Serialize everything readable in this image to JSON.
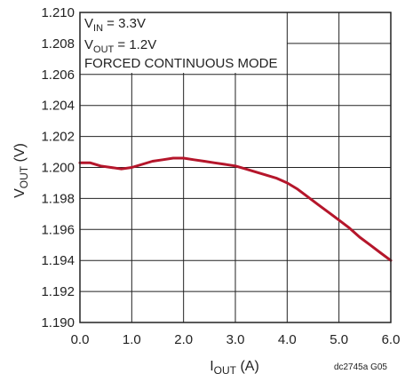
{
  "chart_data": {
    "type": "line",
    "annotations": {
      "vin": {
        "main": "V",
        "sub": "IN",
        "rest": " = 3.3V"
      },
      "vout": {
        "main": "V",
        "sub": "OUT",
        "rest": " = 1.2V"
      },
      "mode": "FORCED CONTINUOUS MODE"
    },
    "xlabel": {
      "main": "I",
      "sub": "OUT",
      "rest": " (A)"
    },
    "ylabel": {
      "main": "V",
      "sub": "OUT",
      "rest": " (V)"
    },
    "figure_code": "dc2745a G05",
    "xlim": [
      0,
      6
    ],
    "ylim": [
      1.19,
      1.21
    ],
    "x_ticks": [
      {
        "v": 0,
        "label": "0.0"
      },
      {
        "v": 1,
        "label": "1.0"
      },
      {
        "v": 2,
        "label": "2.0"
      },
      {
        "v": 3,
        "label": "3.0"
      },
      {
        "v": 4,
        "label": "4.0"
      },
      {
        "v": 5,
        "label": "5.0"
      },
      {
        "v": 6,
        "label": "6.0"
      }
    ],
    "y_ticks": [
      {
        "v": 1.19,
        "label": "1.190"
      },
      {
        "v": 1.192,
        "label": "1.192"
      },
      {
        "v": 1.194,
        "label": "1.194"
      },
      {
        "v": 1.196,
        "label": "1.196"
      },
      {
        "v": 1.198,
        "label": "1.198"
      },
      {
        "v": 1.2,
        "label": "1.200"
      },
      {
        "v": 1.202,
        "label": "1.202"
      },
      {
        "v": 1.204,
        "label": "1.204"
      },
      {
        "v": 1.206,
        "label": "1.206"
      },
      {
        "v": 1.208,
        "label": "1.208"
      },
      {
        "v": 1.21,
        "label": "1.210"
      }
    ],
    "grid": true,
    "line_color": "#b5162b",
    "series": [
      {
        "x": [
          0,
          0.2,
          0.4,
          0.6,
          0.8,
          1.0,
          1.2,
          1.4,
          1.6,
          1.8,
          2.0,
          2.2,
          2.4,
          2.6,
          2.8,
          3.0,
          3.2,
          3.4,
          3.6,
          3.8,
          4.0,
          4.2,
          4.4,
          4.6,
          4.8,
          5.0,
          5.2,
          5.4,
          5.6,
          5.8,
          6.0
        ],
        "y": [
          1.2003,
          1.2003,
          1.2001,
          1.2,
          1.1999,
          1.2,
          1.2002,
          1.2004,
          1.2005,
          1.2006,
          1.2006,
          1.2005,
          1.2004,
          1.2003,
          1.2002,
          1.2001,
          1.1999,
          1.1997,
          1.1995,
          1.1993,
          1.199,
          1.1986,
          1.1981,
          1.1976,
          1.1971,
          1.1966,
          1.1961,
          1.1955,
          1.195,
          1.1945,
          1.194
        ]
      }
    ]
  }
}
